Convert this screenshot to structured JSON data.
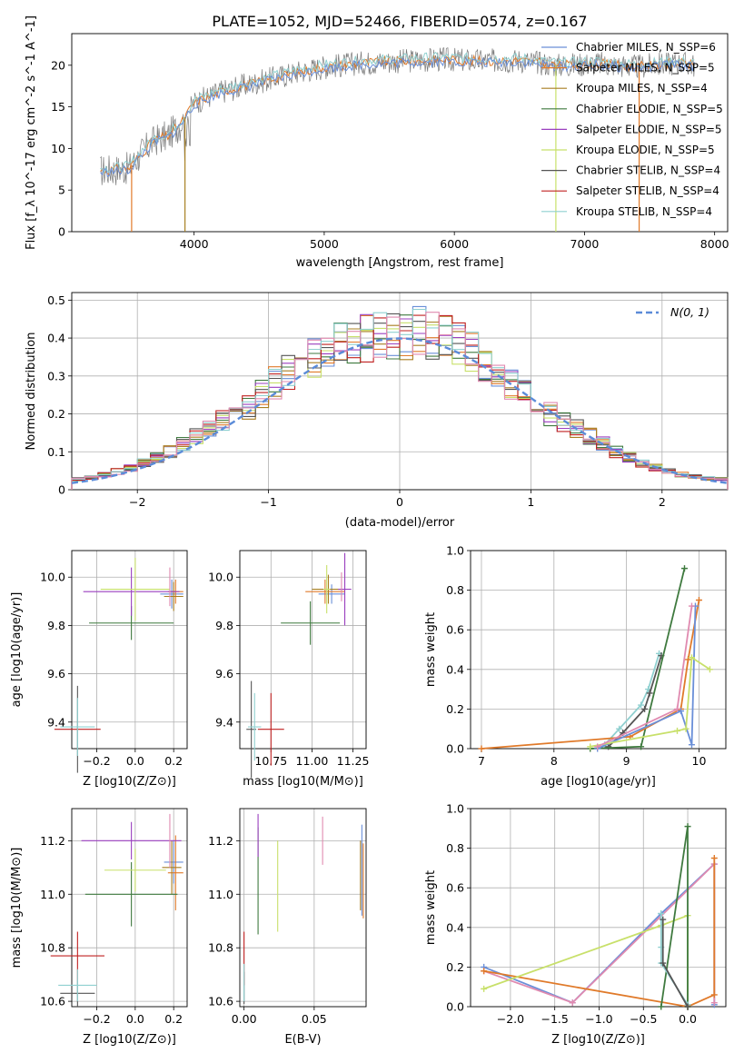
{
  "figure_title": "PLATE=1052, MJD=52466, FIBERID=0574, z=0.167",
  "colors": {
    "chabrier_miles": "#6a8fd8",
    "salpeter_miles": "#e07a2a",
    "kroupa_miles": "#a87f22",
    "chabrier_elodie": "#3f7a3f",
    "salpeter_elodie": "#9a3fbf",
    "kroupa_elodie": "#c8e06a",
    "chabrier_stelib": "#555555",
    "salpeter_stelib": "#c02020",
    "kroupa_stelib": "#8fd0d0",
    "pink": "#e08ab0",
    "normal_curve": "#5b8bd8",
    "grid": "#b0b0b0"
  },
  "chart_data": [
    {
      "id": "spectrum",
      "type": "line",
      "xlabel": "wavelength [Angstrom, rest frame]",
      "ylabel": "Flux [f_λ 10^-17 erg cm^-2 s^-1 A^-1]",
      "xlim": [
        3060,
        8100
      ],
      "ylim": [
        0,
        23.8
      ],
      "xticks": [
        4000,
        5000,
        6000,
        7000,
        8000
      ],
      "yticks": [
        0,
        5,
        10,
        15,
        20
      ],
      "grid": false,
      "legend_position": "top-right",
      "legend": [
        {
          "label": "Chabrier MILES, N_SSP=6",
          "key": "chabrier_miles"
        },
        {
          "label": "Salpeter MILES, N_SSP=5",
          "key": "salpeter_miles"
        },
        {
          "label": "Kroupa MILES, N_SSP=4",
          "key": "kroupa_miles"
        },
        {
          "label": "Chabrier ELODIE, N_SSP=5",
          "key": "chabrier_elodie"
        },
        {
          "label": "Salpeter ELODIE, N_SSP=5",
          "key": "salpeter_elodie"
        },
        {
          "label": "Kroupa ELODIE, N_SSP=5",
          "key": "kroupa_elodie"
        },
        {
          "label": "Chabrier STELIB, N_SSP=4",
          "key": "chabrier_stelib"
        },
        {
          "label": "Salpeter STELIB, N_SSP=4",
          "key": "salpeter_stelib"
        },
        {
          "label": "Kroupa STELIB, N_SSP=4",
          "key": "kroupa_stelib"
        }
      ],
      "data_continuum": {
        "x": [
          3280,
          3500,
          3600,
          3700,
          3800,
          3900,
          4000,
          4200,
          4500,
          4800,
          5000,
          5300,
          5600,
          5900,
          6200,
          6500,
          6800,
          7100,
          7400,
          7700,
          7850
        ],
        "y": [
          7.3,
          7.6,
          9.5,
          11.0,
          11.5,
          13.0,
          15.5,
          16.8,
          18.0,
          19.2,
          19.8,
          20.3,
          20.5,
          20.7,
          20.5,
          20.6,
          20.0,
          20.2,
          19.8,
          20.3,
          20.0
        ]
      }
    },
    {
      "id": "residuals",
      "type": "histogram",
      "xlabel": "(data-model)/error",
      "ylabel": "Normed distribution",
      "xlim": [
        -2.5,
        2.5
      ],
      "ylim": [
        0,
        0.52
      ],
      "xticks": [
        -2,
        -1,
        0,
        1,
        2
      ],
      "yticks": [
        0.0,
        0.1,
        0.2,
        0.3,
        0.4,
        0.5
      ],
      "grid": true,
      "legend_position": "top-right",
      "curve_label": "N(0, 1)",
      "bin_edges_start": -2.5,
      "bin_width": 0.1,
      "envelope": [
        0.028,
        0.032,
        0.04,
        0.048,
        0.058,
        0.07,
        0.085,
        0.1,
        0.12,
        0.14,
        0.16,
        0.18,
        0.2,
        0.22,
        0.25,
        0.28,
        0.31,
        0.33,
        0.35,
        0.37,
        0.38,
        0.39,
        0.4,
        0.41,
        0.4,
        0.4,
        0.42,
        0.41,
        0.4,
        0.39,
        0.37,
        0.34,
        0.31,
        0.28,
        0.26,
        0.23,
        0.2,
        0.18,
        0.16,
        0.14,
        0.12,
        0.1,
        0.085,
        0.07,
        0.058,
        0.048,
        0.04,
        0.034,
        0.03,
        0.028
      ]
    },
    {
      "id": "age_vs_Z",
      "type": "scatter",
      "xlabel": "Z [log10(Z/Z⊙)]",
      "ylabel": "age  [log10(age/yr)]",
      "xlim": [
        -0.33,
        0.27
      ],
      "ylim": [
        9.29,
        10.11
      ],
      "xticks": [
        -0.2,
        0.0,
        0.2
      ],
      "xticklabels": [
        "−0.2",
        "0.0",
        "0.2"
      ],
      "yticks": [
        9.4,
        9.6,
        9.8,
        10.0
      ],
      "yticklabels": [
        "9.4",
        "9.6",
        "9.8",
        "10.0"
      ],
      "grid": true,
      "points": [
        {
          "x": 0.19,
          "y": 9.93,
          "xerr": 0.06,
          "yerr": 0.06,
          "key": "chabrier_miles"
        },
        {
          "x": 0.21,
          "y": 9.94,
          "xerr": 0.04,
          "yerr": 0.05,
          "key": "salpeter_miles"
        },
        {
          "x": 0.2,
          "y": 9.92,
          "xerr": 0.05,
          "yerr": 0.06,
          "key": "kroupa_miles"
        },
        {
          "x": -0.02,
          "y": 9.81,
          "xerr": 0.22,
          "yerr": 0.07,
          "key": "chabrier_elodie"
        },
        {
          "x": -0.02,
          "y": 9.94,
          "xerr": 0.25,
          "yerr": 0.1,
          "key": "salpeter_elodie"
        },
        {
          "x": 0.0,
          "y": 9.95,
          "xerr": 0.18,
          "yerr": 0.13,
          "key": "kroupa_elodie"
        },
        {
          "x": -0.3,
          "y": 9.37,
          "xerr": 0.0,
          "yerr": 0.18,
          "key": "chabrier_stelib"
        },
        {
          "x": -0.3,
          "y": 9.37,
          "xerr": 0.12,
          "yerr": 0.0,
          "key": "salpeter_stelib"
        },
        {
          "x": -0.3,
          "y": 9.38,
          "xerr": 0.09,
          "yerr": 0.12,
          "key": "kroupa_stelib"
        },
        {
          "x": 0.18,
          "y": 9.96,
          "xerr": 0.0,
          "yerr": 0.08,
          "key": "pink"
        }
      ]
    },
    {
      "id": "age_vs_mass",
      "type": "scatter",
      "xlabel": "mass [log10(M/M⊙)]",
      "ylabel": "",
      "xlim": [
        10.56,
        11.33
      ],
      "ylim": [
        9.29,
        10.11
      ],
      "xticks": [
        10.75,
        11.0,
        11.25
      ],
      "xticklabels": [
        "10.75",
        "11.00",
        "11.25"
      ],
      "yticks": [
        9.4,
        9.6,
        9.8,
        10.0
      ],
      "yticklabels": [
        "9.4",
        "9.6",
        "9.8",
        "10.0"
      ],
      "grid": true,
      "points": [
        {
          "x": 11.12,
          "y": 9.93,
          "xerr": 0.08,
          "yerr": 0.04,
          "key": "chabrier_miles"
        },
        {
          "x": 11.08,
          "y": 9.94,
          "xerr": 0.12,
          "yerr": 0.05,
          "key": "salpeter_miles"
        },
        {
          "x": 11.1,
          "y": 9.95,
          "xerr": 0.1,
          "yerr": 0.06,
          "key": "kroupa_miles"
        },
        {
          "x": 10.99,
          "y": 9.81,
          "xerr": 0.18,
          "yerr": 0.09,
          "key": "chabrier_elodie"
        },
        {
          "x": 11.2,
          "y": 9.95,
          "xerr": 0.04,
          "yerr": 0.15,
          "key": "salpeter_elodie"
        },
        {
          "x": 11.09,
          "y": 9.95,
          "xerr": 0.02,
          "yerr": 0.1,
          "key": "kroupa_elodie"
        },
        {
          "x": 10.63,
          "y": 9.37,
          "xerr": 0.03,
          "yerr": 0.2,
          "key": "chabrier_stelib"
        },
        {
          "x": 10.75,
          "y": 9.37,
          "xerr": 0.08,
          "yerr": 0.15,
          "key": "salpeter_stelib"
        },
        {
          "x": 10.65,
          "y": 9.38,
          "xerr": 0.04,
          "yerr": 0.14,
          "key": "kroupa_stelib"
        },
        {
          "x": 11.18,
          "y": 9.96,
          "xerr": 0.0,
          "yerr": 0.06,
          "key": "pink"
        }
      ]
    },
    {
      "id": "weight_vs_age",
      "type": "line",
      "xlabel": "age  [log10(age/yr)]",
      "ylabel": "mass weight",
      "xlim": [
        6.85,
        10.37
      ],
      "ylim": [
        0,
        1.0
      ],
      "xticks": [
        7,
        8,
        9,
        10
      ],
      "xticklabels": [
        "7",
        "8",
        "9",
        "10"
      ],
      "yticks": [
        0.0,
        0.2,
        0.4,
        0.6,
        0.8,
        1.0
      ],
      "yticklabels": [
        "0.0",
        "0.2",
        "0.4",
        "0.6",
        "0.8",
        "1.0"
      ],
      "grid": true,
      "series": [
        {
          "key": "kroupa_stelib",
          "x": [
            8.7,
            8.9,
            9.2,
            9.3,
            9.45
          ],
          "y": [
            0.02,
            0.1,
            0.22,
            0.3,
            0.48
          ]
        },
        {
          "key": "chabrier_stelib",
          "x": [
            8.75,
            8.95,
            9.25,
            9.32,
            9.48
          ],
          "y": [
            0.01,
            0.08,
            0.2,
            0.28,
            0.47
          ]
        },
        {
          "key": "chabrier_elodie",
          "x": [
            8.5,
            9.2,
            9.8
          ],
          "y": [
            0.0,
            0.01,
            0.91
          ]
        },
        {
          "key": "salpeter_miles",
          "x": [
            7.0,
            9.05,
            9.75,
            9.85,
            10.0
          ],
          "y": [
            0.0,
            0.06,
            0.2,
            0.45,
            0.75
          ]
        },
        {
          "key": "chabrier_miles",
          "x": [
            8.6,
            9.75,
            9.9,
            9.95
          ],
          "y": [
            0.0,
            0.19,
            0.02,
            0.72
          ]
        },
        {
          "key": "kroupa_elodie",
          "x": [
            8.5,
            9.7,
            9.82,
            9.9,
            10.15
          ],
          "y": [
            0.01,
            0.09,
            0.1,
            0.46,
            0.4
          ]
        },
        {
          "key": "pink",
          "x": [
            8.6,
            9.7,
            9.9
          ],
          "y": [
            0.01,
            0.2,
            0.72
          ]
        }
      ]
    },
    {
      "id": "mass_vs_Z",
      "type": "scatter",
      "xlabel": "Z [log10(Z/Z⊙)]",
      "ylabel": "mass [log10(M/M⊙)]",
      "xlim": [
        -0.33,
        0.27
      ],
      "ylim": [
        10.58,
        11.32
      ],
      "xticks": [
        -0.2,
        0.0,
        0.2
      ],
      "xticklabels": [
        "−0.2",
        "0.0",
        "0.2"
      ],
      "yticks": [
        10.6,
        10.8,
        11.0,
        11.2
      ],
      "yticklabels": [
        "10.6",
        "10.8",
        "11.0",
        "11.2"
      ],
      "grid": true,
      "points": [
        {
          "x": 0.2,
          "y": 11.12,
          "xerr": 0.05,
          "yerr": 0.08,
          "key": "chabrier_miles"
        },
        {
          "x": 0.21,
          "y": 11.08,
          "xerr": 0.04,
          "yerr": 0.14,
          "key": "salpeter_miles"
        },
        {
          "x": 0.19,
          "y": 11.1,
          "xerr": 0.05,
          "yerr": 0.1,
          "key": "kroupa_miles"
        },
        {
          "x": -0.02,
          "y": 11.0,
          "xerr": 0.24,
          "yerr": 0.12,
          "key": "chabrier_elodie"
        },
        {
          "x": -0.02,
          "y": 11.2,
          "xerr": 0.26,
          "yerr": 0.07,
          "key": "salpeter_elodie"
        },
        {
          "x": 0.0,
          "y": 11.09,
          "xerr": 0.16,
          "yerr": 0.08,
          "key": "kroupa_elodie"
        },
        {
          "x": -0.3,
          "y": 10.63,
          "xerr": 0.09,
          "yerr": 0.05,
          "key": "chabrier_stelib"
        },
        {
          "x": -0.3,
          "y": 10.77,
          "xerr": 0.14,
          "yerr": 0.09,
          "key": "salpeter_stelib"
        },
        {
          "x": -0.3,
          "y": 10.66,
          "xerr": 0.1,
          "yerr": 0.06,
          "key": "kroupa_stelib"
        },
        {
          "x": 0.18,
          "y": 11.2,
          "xerr": 0.0,
          "yerr": 0.1,
          "key": "pink"
        }
      ]
    },
    {
      "id": "mass_vs_ebv",
      "type": "scatter",
      "xlabel": "E(B-V)",
      "ylabel": "",
      "xlim": [
        -0.003,
        0.087
      ],
      "ylim": [
        10.58,
        11.32
      ],
      "xticks": [
        0.0,
        0.05
      ],
      "xticklabels": [
        "0.00",
        "0.05"
      ],
      "yticks": [
        10.6,
        10.8,
        11.0,
        11.2
      ],
      "yticklabels": [
        "10.6",
        "10.8",
        "11.0",
        "11.2"
      ],
      "grid": true,
      "points": [
        {
          "x": 0.084,
          "y": 11.09,
          "xerr": 0.0,
          "yerr": 0.17,
          "key": "chabrier_miles"
        },
        {
          "x": 0.085,
          "y": 11.05,
          "xerr": 0.0,
          "yerr": 0.14,
          "key": "salpeter_miles"
        },
        {
          "x": 0.083,
          "y": 11.07,
          "xerr": 0.0,
          "yerr": 0.13,
          "key": "kroupa_miles"
        },
        {
          "x": 0.01,
          "y": 11.05,
          "xerr": 0.0,
          "yerr": 0.2,
          "key": "chabrier_elodie"
        },
        {
          "x": 0.01,
          "y": 11.22,
          "xerr": 0.0,
          "yerr": 0.08,
          "key": "salpeter_elodie"
        },
        {
          "x": 0.024,
          "y": 11.03,
          "xerr": 0.0,
          "yerr": 0.17,
          "key": "kroupa_elodie"
        },
        {
          "x": 0.0,
          "y": 10.65,
          "xerr": 0.0,
          "yerr": 0.06,
          "key": "chabrier_stelib"
        },
        {
          "x": 0.0,
          "y": 10.76,
          "xerr": 0.0,
          "yerr": 0.1,
          "key": "salpeter_stelib"
        },
        {
          "x": 0.0,
          "y": 10.67,
          "xerr": 0.0,
          "yerr": 0.07,
          "key": "kroupa_stelib"
        },
        {
          "x": 0.056,
          "y": 11.2,
          "xerr": 0.0,
          "yerr": 0.09,
          "key": "pink"
        }
      ]
    },
    {
      "id": "weight_vs_Z",
      "type": "line",
      "xlabel": "Z [log10(Z/Z⊙)]",
      "ylabel": "mass weight",
      "xlim": [
        -2.45,
        0.43
      ],
      "ylim": [
        0,
        1.0
      ],
      "xticks": [
        -2.0,
        -1.5,
        -1.0,
        -0.5,
        0.0
      ],
      "xticklabels": [
        "−2.0",
        "−1.5",
        "−1.0",
        "−0.5",
        "0.0"
      ],
      "yticks": [
        0.0,
        0.2,
        0.4,
        0.6,
        0.8,
        1.0
      ],
      "yticklabels": [
        "0.0",
        "0.2",
        "0.4",
        "0.6",
        "0.8",
        "1.0"
      ],
      "grid": true,
      "series": [
        {
          "key": "chabrier_miles",
          "x": [
            -2.3,
            -1.3,
            -0.3,
            0.3,
            0.3
          ],
          "y": [
            0.2,
            0.02,
            0.47,
            0.72,
            0.01
          ]
        },
        {
          "key": "pink",
          "x": [
            -2.3,
            -1.3,
            0.3,
            0.3
          ],
          "y": [
            0.18,
            0.02,
            0.72,
            0.02
          ]
        },
        {
          "key": "salpeter_miles",
          "x": [
            -2.3,
            0.0,
            0.3,
            0.3
          ],
          "y": [
            0.18,
            0.0,
            0.06,
            0.75
          ]
        },
        {
          "key": "kroupa_elodie",
          "x": [
            -2.3,
            -0.3,
            0.0,
            0.0
          ],
          "y": [
            0.09,
            0.41,
            0.46,
            0.0
          ]
        },
        {
          "key": "chabrier_elodie",
          "x": [
            -0.3,
            0.0,
            0.0
          ],
          "y": [
            0.0,
            0.91,
            0.0
          ]
        },
        {
          "key": "kroupa_stelib",
          "x": [
            -0.3,
            -0.3,
            -0.3,
            0.0
          ],
          "y": [
            0.47,
            0.3,
            0.22,
            0.01
          ]
        },
        {
          "key": "chabrier_stelib",
          "x": [
            -0.28,
            -0.28,
            0.0
          ],
          "y": [
            0.44,
            0.22,
            0.0
          ]
        }
      ]
    }
  ]
}
